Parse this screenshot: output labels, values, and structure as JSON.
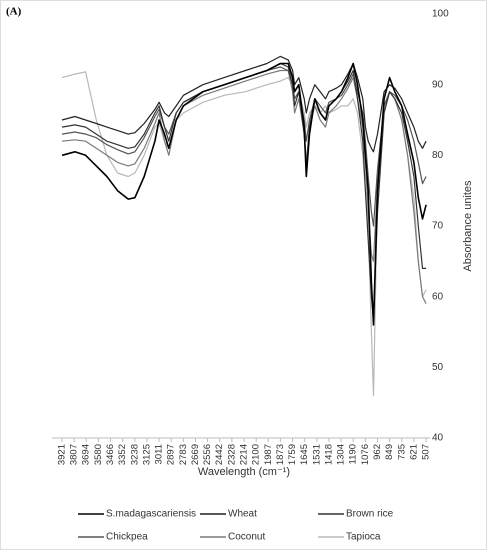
{
  "chart_data": {
    "type": "line",
    "panel_label": "(A)",
    "xlabel": "Wavelength (cm⁻¹)",
    "ylabel": "Absorbance unites",
    "xlim": [
      4015,
      470
    ],
    "xticks": [
      3921,
      3807,
      3694,
      3580,
      3466,
      3352,
      3238,
      3125,
      3011,
      2897,
      2783,
      2669,
      2556,
      2442,
      2328,
      2214,
      2100,
      1987,
      1873,
      1759,
      1645,
      1531,
      1418,
      1304,
      1190,
      1076,
      962,
      849,
      735,
      621,
      507
    ],
    "ylim": [
      40,
      100
    ],
    "yticks": [
      40,
      50,
      60,
      70,
      80,
      90,
      100
    ],
    "x": [
      3921,
      3800,
      3700,
      3600,
      3500,
      3400,
      3300,
      3238,
      3150,
      3050,
      3011,
      2960,
      2920,
      2850,
      2783,
      2600,
      2400,
      2200,
      2000,
      1873,
      1800,
      1759,
      1740,
      1700,
      1650,
      1630,
      1600,
      1550,
      1500,
      1450,
      1418,
      1350,
      1300,
      1240,
      1190,
      1150,
      1100,
      1076,
      1050,
      1020,
      1000,
      962,
      900,
      849,
      800,
      735,
      680,
      621,
      580,
      540,
      507
    ],
    "series": [
      {
        "name": "S.madagascariensis",
        "color": "#000000",
        "width": 1.6,
        "values": [
          80,
          80.5,
          80,
          78.5,
          77,
          75,
          73.8,
          74,
          77,
          82,
          85,
          83,
          81,
          85,
          87,
          89,
          90,
          91,
          92,
          93,
          93,
          91,
          89,
          90,
          84,
          77,
          83,
          88,
          86,
          85,
          87,
          88,
          89,
          91,
          93,
          90,
          85,
          80,
          75,
          62,
          56,
          75,
          88,
          91,
          89,
          87,
          83,
          79,
          74,
          71,
          73
        ]
      },
      {
        "name": "Wheat",
        "color": "#222222",
        "width": 1.2,
        "values": [
          85,
          85.5,
          85,
          84.5,
          84,
          83.5,
          83,
          83.2,
          84.5,
          86.5,
          87.5,
          86,
          85.5,
          87,
          88.5,
          90,
          91,
          92,
          93,
          94,
          93.5,
          92,
          90,
          91,
          88,
          86,
          88,
          90,
          89,
          88,
          89,
          89.5,
          90,
          91.5,
          93,
          91,
          88,
          84,
          82,
          81,
          80.5,
          83,
          89,
          90,
          89.5,
          88,
          86,
          84,
          82,
          81,
          82
        ]
      },
      {
        "name": "Brown rice",
        "color": "#333333",
        "width": 1.2,
        "values": [
          84,
          84.3,
          84,
          83,
          82,
          81.5,
          81,
          81.2,
          83,
          86,
          87,
          84,
          82,
          86,
          87.5,
          89,
          90,
          91,
          92,
          93,
          92.5,
          90,
          87,
          89,
          83,
          78,
          84,
          88,
          86,
          85,
          87,
          88,
          89,
          90.5,
          92,
          88,
          82,
          75,
          68,
          60,
          57,
          72,
          86,
          89,
          88,
          86,
          82,
          77,
          70,
          64,
          64
        ]
      },
      {
        "name": "Chickpea",
        "color": "#555555",
        "width": 1.2,
        "values": [
          83,
          83.3,
          83,
          82.5,
          81.5,
          80.8,
          80.2,
          80.5,
          82.5,
          85.5,
          86.5,
          84,
          83,
          86,
          87.5,
          89,
          90,
          91,
          92,
          92.5,
          92,
          90,
          88,
          89,
          85,
          82,
          85,
          88,
          87,
          86,
          87.5,
          88,
          88.5,
          90,
          91.5,
          89,
          86,
          82,
          77,
          72,
          70,
          78,
          87,
          89,
          88.5,
          87,
          85,
          82,
          79,
          76,
          77
        ]
      },
      {
        "name": "Coconut",
        "color": "#7a7a7a",
        "width": 1.2,
        "values": [
          82,
          82.2,
          82,
          81,
          80,
          79,
          78.5,
          78.8,
          81,
          84.5,
          86,
          82,
          80,
          85,
          87,
          88.5,
          89.5,
          90.5,
          91.5,
          92,
          92,
          89,
          86,
          88,
          83,
          79,
          84,
          87,
          85,
          84,
          86,
          87,
          88,
          89.5,
          91,
          88,
          84,
          79,
          72,
          66,
          65,
          76,
          87,
          89,
          88,
          85,
          80,
          72,
          65,
          60,
          59
        ]
      },
      {
        "name": "Tapioca",
        "color": "#b8b8b8",
        "width": 1.2,
        "values": [
          91,
          91.5,
          91.8,
          85,
          80,
          77.5,
          77,
          77.5,
          80,
          84,
          84.5,
          82,
          81,
          85,
          86,
          87.5,
          88.5,
          89,
          90,
          90.5,
          91,
          90,
          88,
          89,
          86,
          84,
          86,
          87,
          86,
          87,
          86,
          86.5,
          87,
          87,
          88,
          86,
          80,
          75,
          70,
          55,
          46,
          75,
          86,
          89,
          88,
          85,
          80,
          74,
          65,
          60,
          61
        ]
      }
    ]
  }
}
